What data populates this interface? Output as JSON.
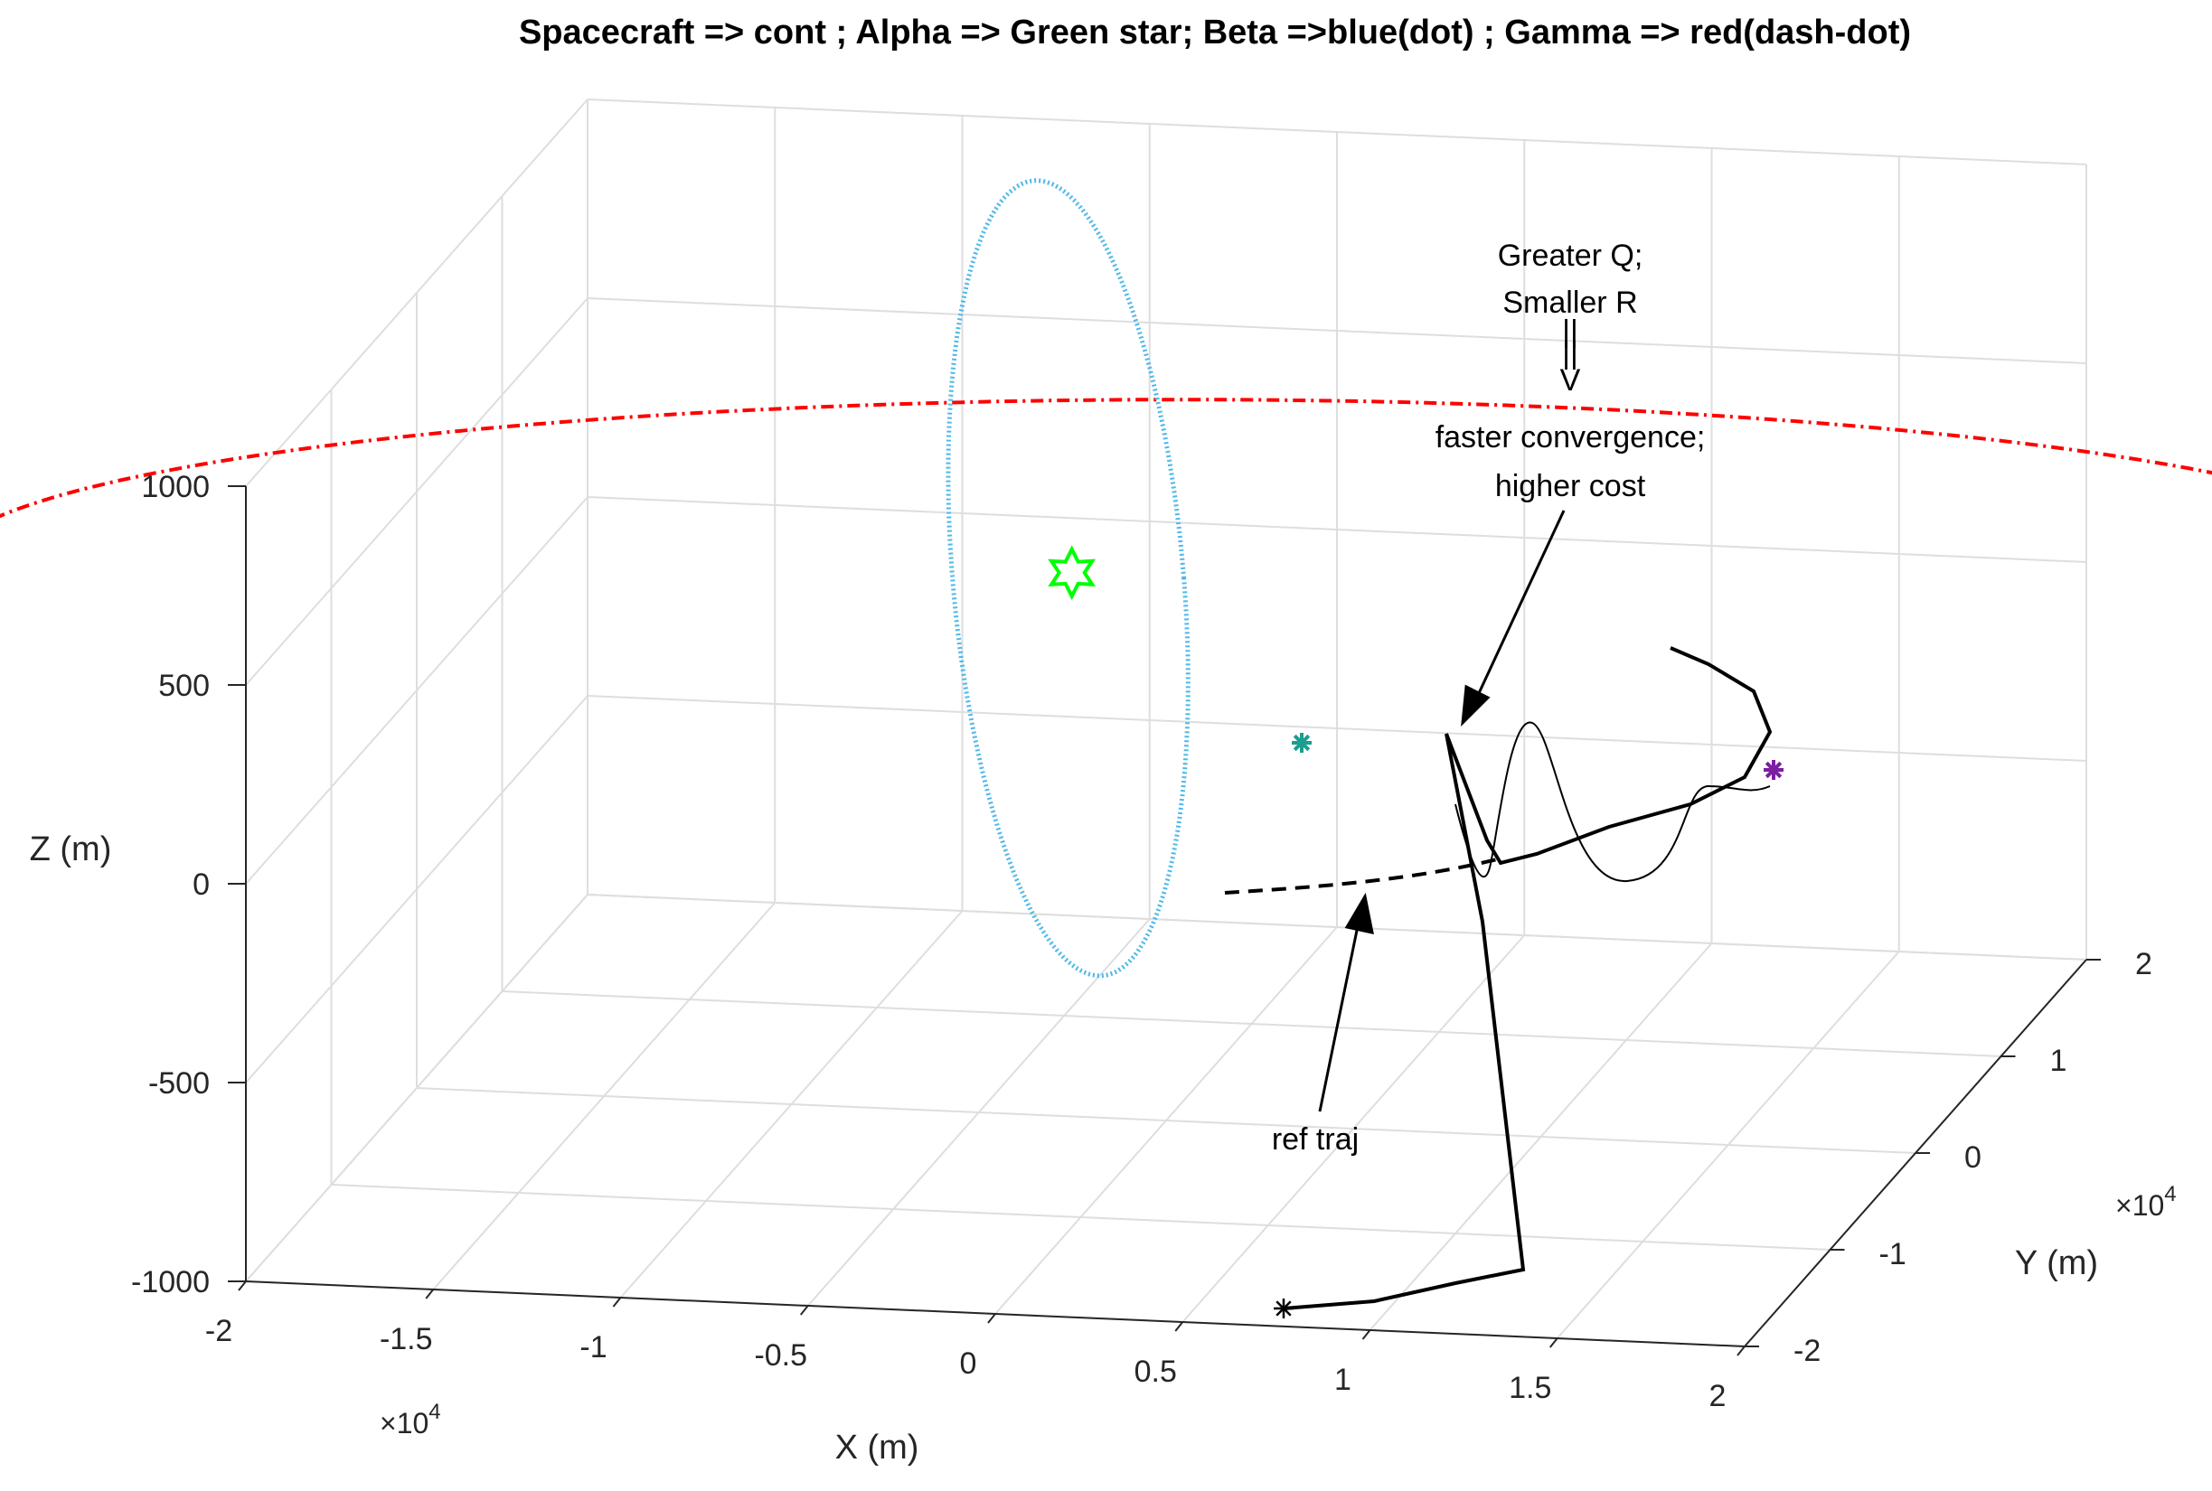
{
  "chart_data": {
    "type": "line3d",
    "title": "Spacecraft => cont ;    Alpha => Green star;  Beta =>blue(dot) ;  Gamma => red(dash-dot)",
    "xlabel": "X  (m)",
    "ylabel": "Y  (m)",
    "zlabel": "Z  (m)",
    "xlim": [
      -20000,
      20000
    ],
    "ylim": [
      -20000,
      20000
    ],
    "zlim": [
      -1000,
      1000
    ],
    "x_ticks": [
      "-2",
      "-1.5",
      "-1",
      "-0.5",
      "0",
      "0.5",
      "1",
      "1.5",
      "2"
    ],
    "y_ticks": [
      "-2",
      "-1",
      "0",
      "1",
      "2"
    ],
    "z_ticks": [
      "-1000",
      "-500",
      "0",
      "500",
      "1000"
    ],
    "x_exponent": "×10",
    "x_exponent_power": "4",
    "y_exponent": "×10",
    "y_exponent_power": "4",
    "grid": true,
    "colors": {
      "alpha": "#00ff00",
      "beta": "#4db8e8",
      "gamma": "#ff0000",
      "spacecraft": "#000000",
      "start_marker": "#7b1fa2",
      "beta_marker": "#1a9e8f"
    },
    "series": [
      {
        "name": "Alpha",
        "marker": "hexagram",
        "x": [
          -3000
        ],
        "y": [
          0
        ],
        "z": [
          370
        ]
      },
      {
        "name": "Beta",
        "style": "dot",
        "center": {
          "x": -3000,
          "y": 0,
          "z": 370
        },
        "radius_x": 8000,
        "radius_z": 2000
      },
      {
        "name": "Gamma",
        "style": "dash-dot",
        "center": {
          "x": 0,
          "y": 0,
          "z": 370
        },
        "radius": 18000
      },
      {
        "name": "Spacecraft",
        "style": "solid",
        "x": [
          8000,
          16000,
          16000,
          10500,
          10000,
          10800,
          12500,
          15000,
          17300
        ],
        "y": [
          -20000,
          -20000,
          -10000,
          -5000,
          -3000,
          -3500,
          -1000,
          0,
          5000
        ],
        "z": [
          -1000,
          -1000,
          -700,
          100,
          550,
          200,
          380,
          400,
          560
        ]
      },
      {
        "name": "ref traj",
        "style": "dash",
        "x": [
          -2000,
          3000,
          7000,
          10000
        ],
        "y": [
          -4000,
          -6000,
          -4500,
          -3000
        ],
        "z": [
          0,
          0,
          0,
          0
        ]
      }
    ],
    "annotations": [
      {
        "lines": [
          "Greater Q;",
          "Smaller  R",
          "||",
          "||",
          "V",
          "faster convergence;",
          "higher cost"
        ]
      },
      {
        "lines": [
          "ref traj"
        ]
      }
    ]
  }
}
